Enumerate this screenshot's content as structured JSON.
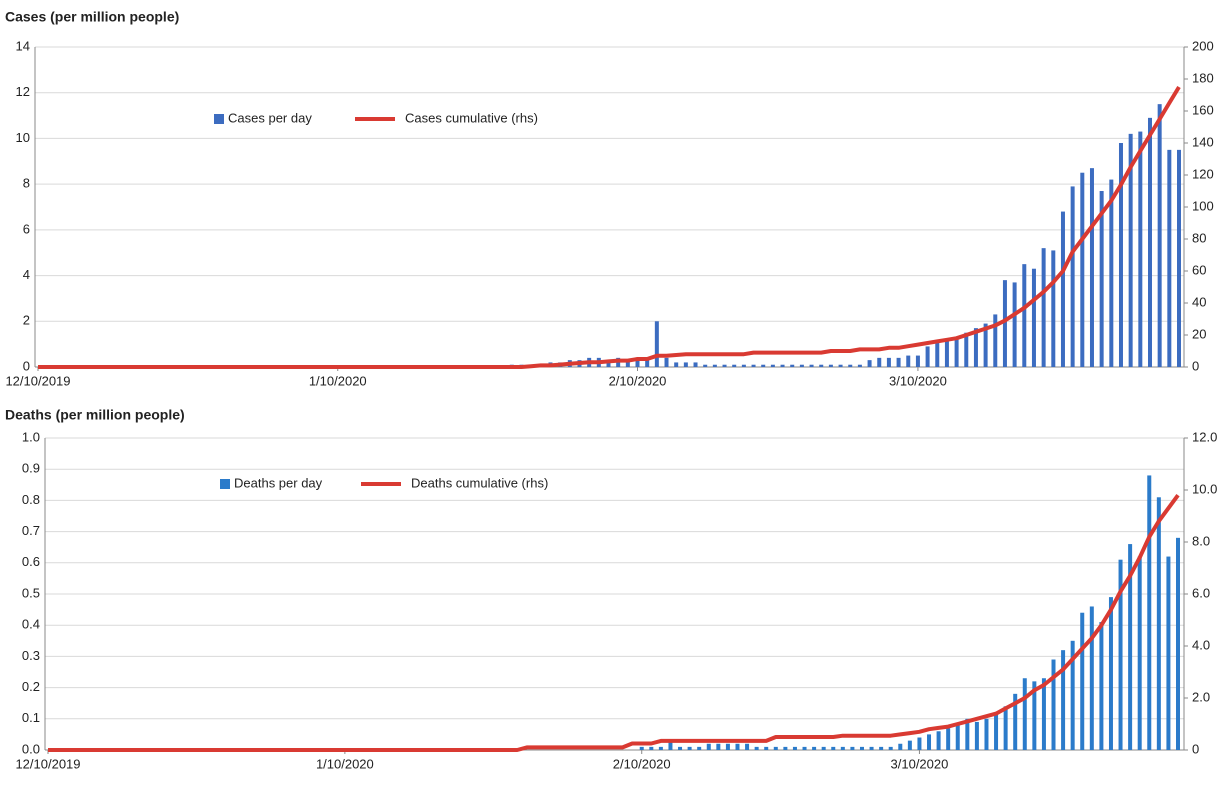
{
  "chart_data": [
    {
      "type": "combo",
      "title": "Cases (per million people)",
      "legend": "upper-left",
      "grid": true,
      "categories": [
        "12/10/2019",
        null,
        null,
        null,
        null,
        null,
        null,
        null,
        null,
        null,
        null,
        null,
        null,
        null,
        null,
        null,
        null,
        null,
        null,
        null,
        null,
        null,
        null,
        null,
        null,
        null,
        null,
        null,
        null,
        null,
        null,
        "1/10/2020",
        null,
        null,
        null,
        null,
        null,
        null,
        null,
        null,
        null,
        null,
        null,
        null,
        null,
        null,
        null,
        null,
        null,
        null,
        null,
        null,
        null,
        null,
        null,
        null,
        null,
        null,
        null,
        null,
        null,
        null,
        "2/10/2020",
        null,
        null,
        null,
        null,
        null,
        null,
        null,
        null,
        null,
        null,
        null,
        null,
        null,
        null,
        null,
        null,
        null,
        null,
        null,
        null,
        null,
        null,
        null,
        null,
        null,
        null,
        null,
        null,
        "3/10/2020",
        null,
        null,
        null,
        null,
        null,
        null,
        null,
        null,
        null,
        null,
        null,
        null,
        null,
        null,
        null,
        null,
        null,
        null,
        null,
        null,
        null,
        null,
        null,
        null,
        null,
        null,
        null
      ],
      "ylim": [
        0,
        14
      ],
      "yticks": [
        0,
        2,
        4,
        6,
        8,
        10,
        12,
        14
      ],
      "y2lim": [
        0,
        200
      ],
      "y2ticks": [
        0,
        20,
        40,
        60,
        80,
        100,
        120,
        140,
        160,
        180,
        200
      ],
      "series": [
        {
          "name": "Cases per day",
          "type": "bar",
          "color": "#3c6cc0",
          "values": [
            0,
            0,
            0,
            0,
            0,
            0,
            0,
            0,
            0,
            0,
            0,
            0,
            0,
            0,
            0,
            0,
            0,
            0,
            0,
            0,
            0,
            0,
            0,
            0,
            0,
            0,
            0,
            0,
            0,
            0,
            0,
            0,
            0,
            0,
            0,
            0,
            0,
            0,
            0,
            0,
            0,
            0,
            0,
            0,
            0,
            0,
            0,
            0,
            0,
            0.1,
            0.1,
            0.1,
            0.1,
            0.2,
            0.2,
            0.3,
            0.3,
            0.4,
            0.4,
            0.3,
            0.4,
            0.3,
            0.3,
            0.4,
            2,
            0.4,
            0.2,
            0.2,
            0.2,
            0.1,
            0.1,
            0.1,
            0.1,
            0.1,
            0.1,
            0.1,
            0.1,
            0.1,
            0.1,
            0.1,
            0.1,
            0.1,
            0.1,
            0.1,
            0.1,
            0.1,
            0.3,
            0.4,
            0.4,
            0.4,
            0.5,
            0.5,
            0.9,
            1.1,
            1.2,
            1.3,
            1.5,
            1.7,
            1.9,
            2.3,
            3.8,
            3.7,
            4.5,
            4.3,
            5.2,
            5.1,
            6.8,
            7.9,
            8.5,
            8.7,
            7.7,
            8.2,
            9.8,
            10.2,
            10.3,
            10.9,
            11.5,
            9.5,
            9.5
          ]
        },
        {
          "name": "Cases cumulative (rhs)",
          "type": "line",
          "axis": "y2",
          "color": "#d93a32",
          "values": [
            0,
            0,
            0,
            0,
            0,
            0,
            0,
            0,
            0,
            0,
            0,
            0,
            0,
            0,
            0,
            0,
            0,
            0,
            0,
            0,
            0,
            0,
            0,
            0,
            0,
            0,
            0,
            0,
            0,
            0,
            0,
            0,
            0,
            0,
            0,
            0,
            0,
            0,
            0,
            0,
            0,
            0,
            0,
            0,
            0,
            0,
            0,
            0,
            0,
            0,
            0,
            0.5,
            1,
            1,
            1.5,
            2,
            2.5,
            3,
            3,
            3.5,
            4,
            4,
            5,
            5,
            7,
            7,
            7.5,
            8,
            8,
            8,
            8,
            8,
            8,
            8,
            9,
            9,
            9,
            9,
            9,
            9,
            9,
            9,
            10,
            10,
            10,
            11,
            11,
            11,
            12,
            12,
            13,
            14,
            15,
            16,
            17,
            18,
            20,
            22,
            24,
            26,
            29,
            33,
            37,
            42,
            47,
            53,
            60,
            72,
            80,
            88,
            96,
            104,
            114,
            125,
            135,
            145,
            155,
            165,
            175
          ]
        }
      ]
    },
    {
      "type": "combo",
      "title": "Deaths (per million people)",
      "legend": "upper-left",
      "grid": true,
      "categories": [
        "12/10/2019",
        null,
        null,
        null,
        null,
        null,
        null,
        null,
        null,
        null,
        null,
        null,
        null,
        null,
        null,
        null,
        null,
        null,
        null,
        null,
        null,
        null,
        null,
        null,
        null,
        null,
        null,
        null,
        null,
        null,
        null,
        "1/10/2020",
        null,
        null,
        null,
        null,
        null,
        null,
        null,
        null,
        null,
        null,
        null,
        null,
        null,
        null,
        null,
        null,
        null,
        null,
        null,
        null,
        null,
        null,
        null,
        null,
        null,
        null,
        null,
        null,
        null,
        null,
        "2/10/2020",
        null,
        null,
        null,
        null,
        null,
        null,
        null,
        null,
        null,
        null,
        null,
        null,
        null,
        null,
        null,
        null,
        null,
        null,
        null,
        null,
        null,
        null,
        null,
        null,
        null,
        null,
        null,
        null,
        "3/10/2020",
        null,
        null,
        null,
        null,
        null,
        null,
        null,
        null,
        null,
        null,
        null,
        null,
        null,
        null,
        null,
        null,
        null,
        null,
        null,
        null,
        null,
        null,
        null,
        null,
        null,
        null,
        null
      ],
      "ylim": [
        0,
        1
      ],
      "yticks": [
        {
          "value": 0,
          "label": "0.0"
        },
        0.1,
        0.2,
        0.3,
        0.4,
        0.5,
        0.6,
        0.7,
        0.8,
        0.9,
        {
          "value": 1,
          "label": "1.0"
        }
      ],
      "y2lim": [
        0,
        12
      ],
      "y2ticks": [
        0,
        {
          "value": 2,
          "label": "2.0"
        },
        {
          "value": 4,
          "label": "4.0"
        },
        {
          "value": 6,
          "label": "6.0"
        },
        {
          "value": 8,
          "label": "8.0"
        },
        {
          "value": 10,
          "label": "10.0"
        },
        {
          "value": 12,
          "label": "12.0"
        }
      ],
      "series": [
        {
          "name": "Deaths per day",
          "type": "bar",
          "color": "#2b7bca",
          "values": [
            0,
            0,
            0,
            0,
            0,
            0,
            0,
            0,
            0,
            0,
            0,
            0,
            0,
            0,
            0,
            0,
            0,
            0,
            0,
            0,
            0,
            0,
            0,
            0,
            0,
            0,
            0,
            0,
            0,
            0,
            0,
            0,
            0,
            0,
            0,
            0,
            0,
            0,
            0,
            0,
            0,
            0,
            0,
            0,
            0,
            0,
            0,
            0,
            0,
            0,
            0,
            0,
            0,
            0,
            0,
            0,
            0,
            0,
            0,
            0,
            0,
            0,
            0.01,
            0.01,
            0.01,
            0.03,
            0.01,
            0.01,
            0.01,
            0.02,
            0.02,
            0.02,
            0.02,
            0.02,
            0.01,
            0.01,
            0.01,
            0.01,
            0.01,
            0.01,
            0.01,
            0.01,
            0.01,
            0.01,
            0.01,
            0.01,
            0.01,
            0.01,
            0.01,
            0.02,
            0.03,
            0.04,
            0.05,
            0.06,
            0.07,
            0.08,
            0.1,
            0.09,
            0.1,
            0.12,
            0.14,
            0.18,
            0.23,
            0.22,
            0.23,
            0.29,
            0.32,
            0.35,
            0.44,
            0.46,
            0.41,
            0.49,
            0.61,
            0.66,
            0.62,
            0.88,
            0.81,
            0.62,
            0.68
          ]
        },
        {
          "name": "Deaths cumulative (rhs)",
          "type": "line",
          "axis": "y2",
          "color": "#d93a32",
          "values": [
            0,
            0,
            0,
            0,
            0,
            0,
            0,
            0,
            0,
            0,
            0,
            0,
            0,
            0,
            0,
            0,
            0,
            0,
            0,
            0,
            0,
            0,
            0,
            0,
            0,
            0,
            0,
            0,
            0,
            0,
            0,
            0,
            0,
            0,
            0,
            0,
            0,
            0,
            0,
            0,
            0,
            0,
            0,
            0,
            0,
            0,
            0,
            0,
            0,
            0,
            0.1,
            0.1,
            0.1,
            0.1,
            0.1,
            0.1,
            0.1,
            0.1,
            0.1,
            0.1,
            0.1,
            0.25,
            0.25,
            0.25,
            0.35,
            0.35,
            0.35,
            0.35,
            0.35,
            0.35,
            0.35,
            0.35,
            0.35,
            0.35,
            0.35,
            0.35,
            0.5,
            0.5,
            0.5,
            0.5,
            0.5,
            0.5,
            0.5,
            0.55,
            0.55,
            0.55,
            0.55,
            0.55,
            0.55,
            0.6,
            0.65,
            0.7,
            0.8,
            0.85,
            0.9,
            1,
            1.1,
            1.2,
            1.3,
            1.4,
            1.6,
            1.8,
            2,
            2.3,
            2.5,
            2.8,
            3.1,
            3.5,
            3.9,
            4.3,
            4.8,
            5.4,
            6.1,
            6.7,
            7.4,
            8.2,
            8.8,
            9.3,
            9.8
          ]
        }
      ]
    }
  ]
}
